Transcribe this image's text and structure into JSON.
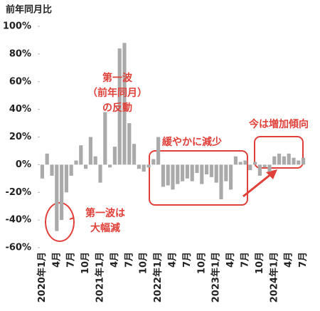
{
  "chart_data": {
    "type": "bar",
    "y_label": "前年同月比",
    "categories": [
      "2020年1月",
      null,
      null,
      "4月",
      null,
      null,
      "7月",
      null,
      null,
      "10月",
      null,
      null,
      "2021年1月",
      null,
      null,
      "4月",
      null,
      null,
      "7月",
      null,
      null,
      "10月",
      null,
      null,
      "2022年1月",
      null,
      null,
      "4月",
      null,
      null,
      "7月",
      null,
      null,
      "10月",
      null,
      null,
      "2023年1月",
      null,
      null,
      "4月",
      null,
      null,
      "7月",
      null,
      null,
      "10月",
      null,
      null,
      "2024年1月",
      null,
      null,
      "4月",
      null,
      null,
      "7月"
    ],
    "values": [
      -10,
      8,
      -8,
      -48,
      -40,
      -20,
      -8,
      3,
      14,
      -3,
      20,
      6,
      -13,
      38,
      -2,
      13,
      84,
      88,
      30,
      15,
      -3,
      -5,
      -2,
      4,
      20,
      -16,
      -15,
      -18,
      -14,
      -12,
      -10,
      -12,
      -6,
      -14,
      -7,
      -9,
      -13,
      -25,
      -12,
      -18,
      6,
      2,
      3,
      -4,
      2,
      -8,
      -2,
      -5,
      6,
      8,
      6,
      8,
      5,
      3,
      5
    ],
    "color": "#aaaaaa",
    "ylim": [
      -60,
      100
    ],
    "yticks": [
      {
        "value": -60,
        "label": "-60%"
      },
      {
        "value": -40,
        "label": "-40%"
      },
      {
        "value": -20,
        "label": "-20%"
      },
      {
        "value": 0,
        "label": "0%"
      },
      {
        "value": 20,
        "label": "20%"
      },
      {
        "value": 40,
        "label": "40%"
      },
      {
        "value": 60,
        "label": "60%"
      },
      {
        "value": 80,
        "label": "80%"
      },
      {
        "value": 100,
        "label": "100%"
      }
    ],
    "grid": false,
    "annotations": [
      {
        "lines": [
          "第一波",
          "（前年同月）",
          "の反動"
        ]
      },
      {
        "lines": [
          "第一波は",
          "大幅減"
        ]
      },
      {
        "lines": [
          "緩やかに減少"
        ]
      },
      {
        "lines": [
          "今は増加傾向"
        ]
      }
    ]
  }
}
